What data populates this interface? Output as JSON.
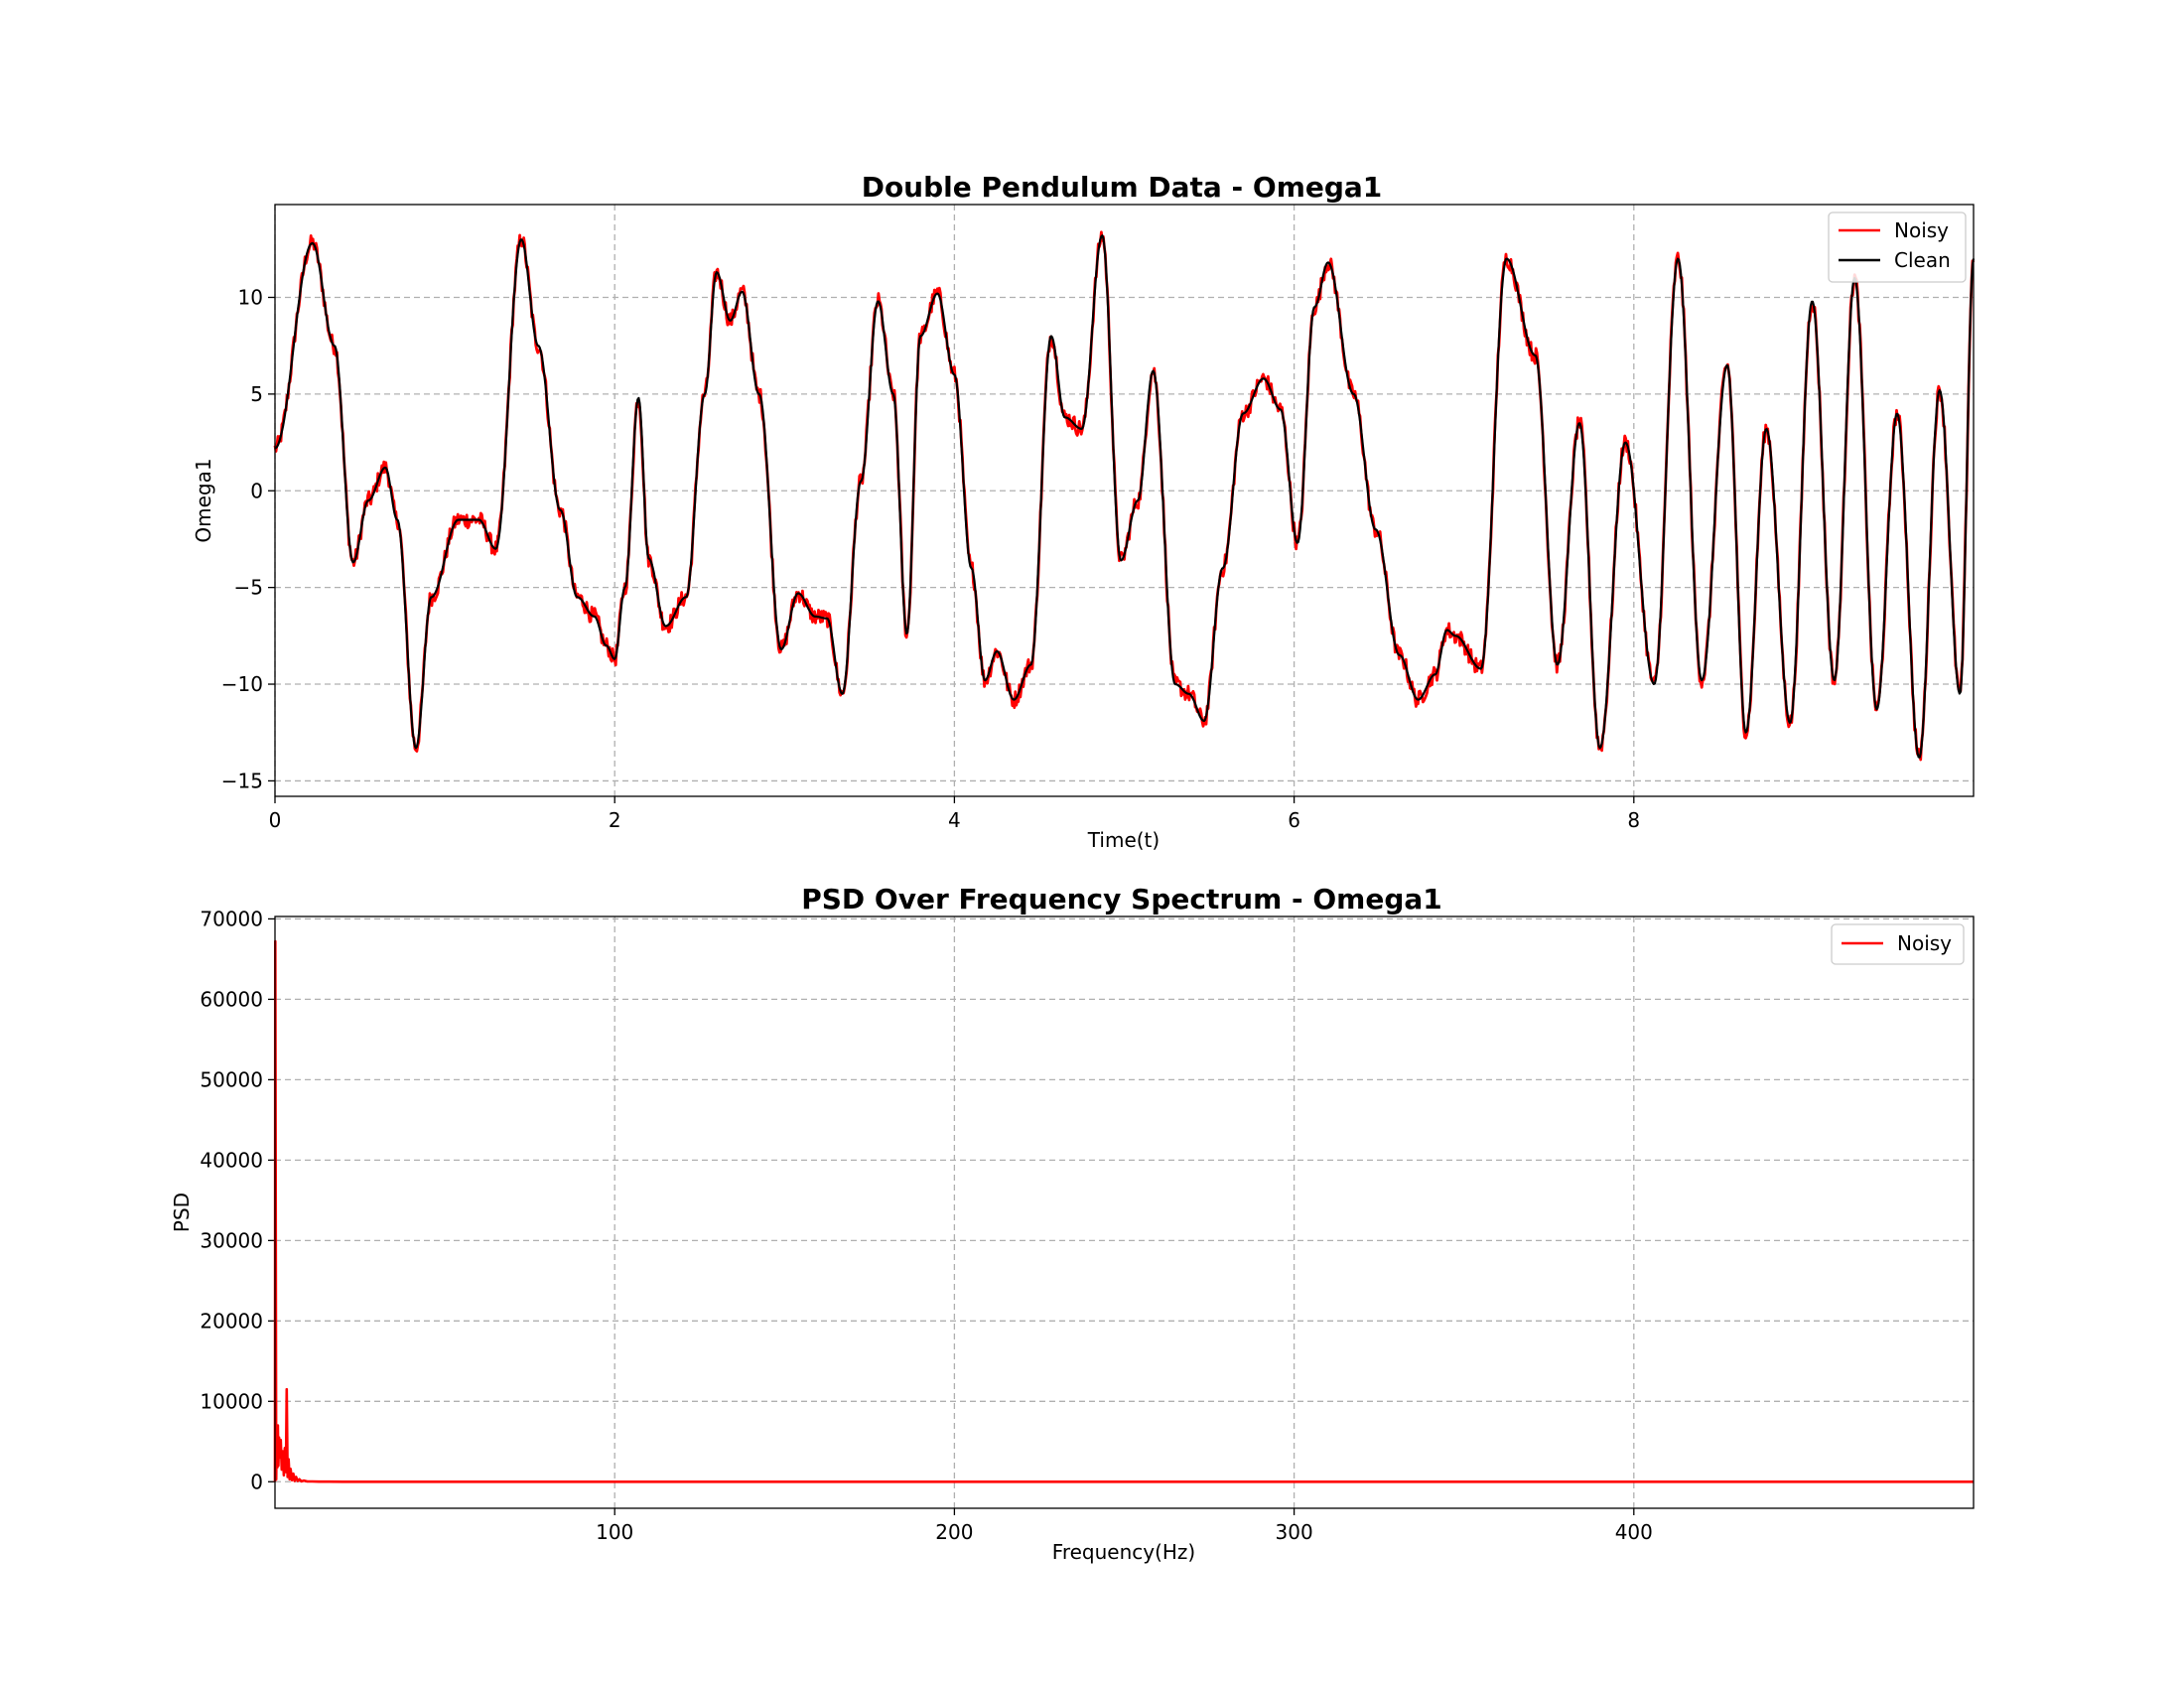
{
  "figure": {
    "background": "#ffffff"
  },
  "chart_data": [
    {
      "type": "line",
      "title": "Double Pendulum Data - Omega1",
      "xlabel": "Time(t)",
      "ylabel": "Omega1",
      "xlim": [
        0,
        10
      ],
      "ylim": [
        -15.8,
        14.8
      ],
      "xticks": [
        0,
        2,
        4,
        6,
        8
      ],
      "xtick_labels": [
        "0",
        "2",
        "4",
        "6",
        "8"
      ],
      "yticks": [
        -15,
        -10,
        -5,
        0,
        5,
        10
      ],
      "ytick_labels": [
        "−15",
        "−10",
        "−5",
        "0",
        "5",
        "10"
      ],
      "grid": true,
      "legend_position": "upper right",
      "series": [
        {
          "name": "Noisy",
          "color": "#ff0000",
          "noise": 0.45
        },
        {
          "name": "Clean",
          "color": "#000000"
        }
      ],
      "x": [
        0,
        0.22,
        0.35,
        0.46,
        0.55,
        0.65,
        0.72,
        0.83,
        0.92,
        1.08,
        1.2,
        1.3,
        1.45,
        1.55,
        1.68,
        1.78,
        1.88,
        1.95,
        2.0,
        2.06,
        2.14,
        2.2,
        2.3,
        2.42,
        2.53,
        2.6,
        2.68,
        2.75,
        2.85,
        2.98,
        3.08,
        3.18,
        3.25,
        3.34,
        3.45,
        3.55,
        3.64,
        3.72,
        3.8,
        3.9,
        4.0,
        4.1,
        4.18,
        4.25,
        4.35,
        4.45,
        4.57,
        4.65,
        4.75,
        4.87,
        4.98,
        5.08,
        5.17,
        5.3,
        5.38,
        5.47,
        5.58,
        5.7,
        5.82,
        5.92,
        6.02,
        6.12,
        6.2,
        6.35,
        6.48,
        6.62,
        6.73,
        6.83,
        6.9,
        6.95,
        7.1,
        7.25,
        7.42,
        7.55,
        7.68,
        7.8,
        7.95,
        8.12,
        8.26,
        8.4,
        8.55,
        8.66,
        8.78,
        8.92,
        9.05,
        9.18,
        9.3,
        9.43,
        9.55,
        9.68,
        9.8,
        9.92,
        10.0
      ],
      "y": [
        2.2,
        12.8,
        7.5,
        -3.7,
        -0.5,
        1.2,
        -1.5,
        -13.3,
        -5.5,
        -1.5,
        -1.5,
        -3.0,
        13.0,
        7.5,
        -1.0,
        -5.5,
        -6.5,
        -8.0,
        -8.7,
        -5.0,
        4.8,
        -3.5,
        -7.0,
        -5.5,
        5.0,
        11.3,
        8.8,
        10.3,
        5.0,
        -8.2,
        -5.3,
        -6.5,
        -6.6,
        -10.5,
        0.5,
        9.8,
        5.0,
        -7.4,
        8.0,
        10.2,
        6.0,
        -4.0,
        -9.8,
        -8.3,
        -10.8,
        -9.0,
        8.0,
        3.8,
        3.2,
        13.2,
        -3.6,
        -0.5,
        6.2,
        -10.0,
        -10.5,
        -11.9,
        -4.0,
        4.0,
        5.8,
        4.2,
        -2.7,
        9.5,
        11.8,
        5.0,
        -2.0,
        -8.5,
        -10.8,
        -9.5,
        -7.2,
        -7.5,
        -9.2,
        12.0,
        7.0,
        -9.0,
        3.5,
        -13.3,
        2.5,
        -10.0,
        12.0,
        -9.8,
        6.5,
        -12.5,
        3.2,
        -12.0,
        9.8,
        -9.8,
        11.0,
        -11.3,
        4.0,
        -13.8,
        5.2,
        -10.5,
        12.0
      ]
    },
    {
      "type": "line",
      "title": "PSD Over Frequency Spectrum - Omega1",
      "xlabel": "Frequency(Hz)",
      "ylabel": "PSD",
      "xlim": [
        0,
        500
      ],
      "ylim": [
        -3300,
        70300
      ],
      "xticks": [
        100,
        200,
        300,
        400
      ],
      "xtick_labels": [
        "100",
        "200",
        "300",
        "400"
      ],
      "yticks": [
        0,
        10000,
        20000,
        30000,
        40000,
        50000,
        60000,
        70000
      ],
      "ytick_labels": [
        "0",
        "10000",
        "20000",
        "30000",
        "40000",
        "50000",
        "60000",
        "70000"
      ],
      "grid": true,
      "legend_position": "upper right",
      "series": [
        {
          "name": "Noisy",
          "color": "#ff0000"
        }
      ],
      "x": [
        0,
        0.1,
        0.35,
        0.5,
        0.7,
        0.85,
        1.0,
        1.2,
        1.45,
        1.7,
        2.0,
        2.3,
        2.6,
        2.9,
        3.2,
        3.45,
        3.7,
        4.0,
        4.3,
        4.6,
        5.0,
        5.4,
        5.8,
        6.2,
        6.7,
        7.2,
        7.8,
        8.5,
        9.5,
        11,
        13,
        16,
        20,
        30,
        60,
        120,
        250,
        400,
        500
      ],
      "y": [
        0,
        67200,
        300,
        5500,
        1800,
        7000,
        2000,
        5500,
        3000,
        5200,
        1500,
        3800,
        800,
        4200,
        1200,
        11500,
        600,
        2800,
        300,
        1600,
        200,
        1000,
        100,
        600,
        100,
        300,
        50,
        150,
        40,
        30,
        10,
        5,
        2,
        1,
        0,
        0,
        0,
        0,
        0
      ]
    }
  ]
}
